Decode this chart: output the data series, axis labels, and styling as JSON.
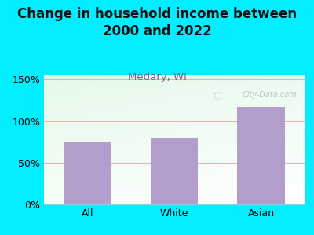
{
  "title": "Change in household income between\n2000 and 2022",
  "subtitle": "Medary, WI",
  "categories": [
    "All",
    "White",
    "Asian"
  ],
  "values": [
    75,
    80,
    117
  ],
  "bar_color": "#b39dcc",
  "background_outer": "#00eeff",
  "grid_color": "#e8a0a0",
  "yticks": [
    0,
    50,
    100,
    150
  ],
  "ylim": [
    0,
    155
  ],
  "title_fontsize": 12,
  "subtitle_fontsize": 9.5,
  "subtitle_color": "#9b4f96",
  "tick_fontsize": 9,
  "watermark": "City-Data.com"
}
